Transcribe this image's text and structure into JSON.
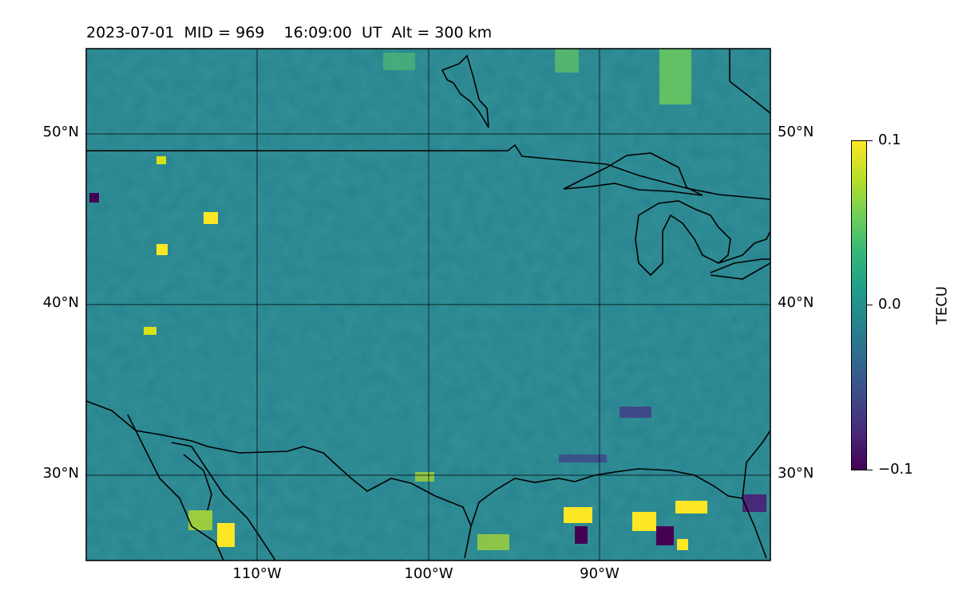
{
  "title": "2023-07-01  MID = 969    16:09:00  UT  Alt = 300 km",
  "map": {
    "extent": {
      "lon": [
        -120,
        -80
      ],
      "lat": [
        25,
        55
      ]
    },
    "lat_ticks": [
      "50°N",
      "40°N",
      "30°N"
    ],
    "lon_ticks": [
      "110°W",
      "100°W",
      "90°W"
    ],
    "gridlines": true
  },
  "colorbar": {
    "label": "TECU",
    "colormap": "viridis",
    "range": [
      -0.1,
      0.1
    ],
    "ticks": [
      "0.1",
      "0.0",
      "−0.1"
    ]
  },
  "colors": {
    "background_field": "#2a8a7a",
    "coastline": "#000000",
    "gridline": "#000000"
  }
}
